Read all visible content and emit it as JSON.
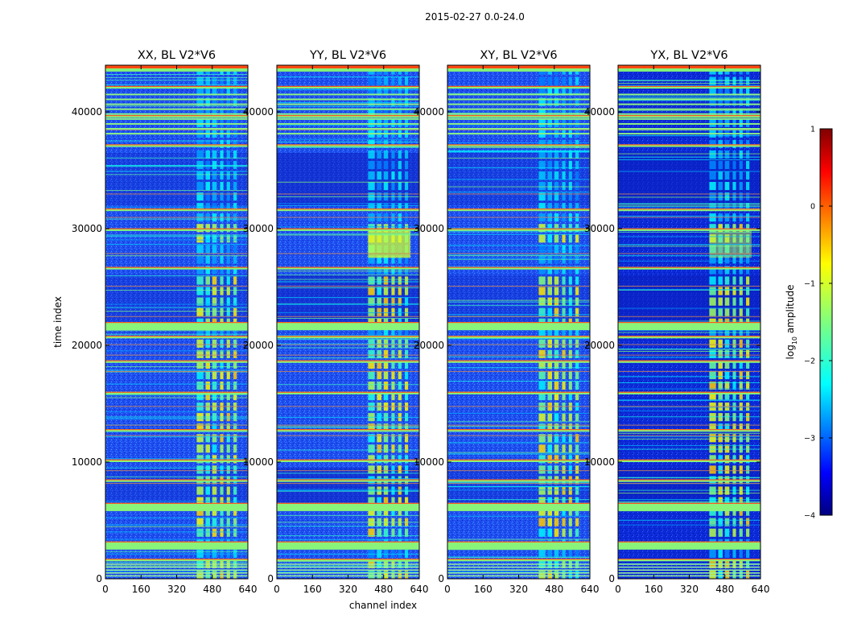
{
  "suptitle": "2015-02-27 0.0-24.0",
  "chart_data": {
    "type": "heatmap",
    "title": "2015-02-27 0.0-24.0",
    "xlabel": "channel index",
    "ylabel": "time index",
    "xlim": [
      0,
      640
    ],
    "ylim": [
      0,
      44000
    ],
    "x_ticks": [
      0,
      160,
      320,
      480,
      640
    ],
    "y_ticks": [
      0,
      10000,
      20000,
      30000,
      40000
    ],
    "colorbar": {
      "label": "log10 amplitude",
      "label_base": "log",
      "label_sub": "10",
      "label_rest": " amplitude",
      "range": [
        -4,
        1
      ],
      "ticks": [
        -4,
        -3,
        -2,
        -1,
        0,
        1
      ],
      "tick_labels": [
        "−4",
        "−3",
        "−2",
        "−1",
        "0",
        "1"
      ],
      "colormap": "jet"
    },
    "panels": [
      {
        "title": "XX, BL V2*V6",
        "rfi_band_channels": [
          410,
          600
        ],
        "background_log_amp": -3.0
      },
      {
        "title": "YY, BL V2*V6",
        "rfi_band_channels": [
          410,
          600
        ],
        "background_log_amp": -3.1
      },
      {
        "title": "XY, BL V2*V6",
        "rfi_band_channels": [
          410,
          600
        ],
        "background_log_amp": -3.0
      },
      {
        "title": "YX, BL V2*V6",
        "rfi_band_channels": [
          410,
          600
        ],
        "background_log_amp": -3.2
      }
    ],
    "broadband_rfi_times": [
      1500,
      2500,
      5800,
      8300,
      10000,
      12600,
      15800,
      18500,
      20600,
      21300,
      26500,
      29800,
      31500,
      37000,
      39500,
      42000,
      43600
    ]
  }
}
